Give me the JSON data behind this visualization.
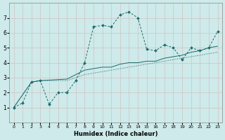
{
  "xlabel": "Humidex (Indice chaleur)",
  "bg_color": "#ceeaea",
  "grid_color": "#b8d8d8",
  "line_color": "#1a6b6b",
  "xlim": [
    -0.5,
    23.5
  ],
  "ylim": [
    0,
    8
  ],
  "xticks": [
    0,
    1,
    2,
    3,
    4,
    5,
    6,
    7,
    8,
    9,
    10,
    11,
    12,
    13,
    14,
    15,
    16,
    17,
    18,
    19,
    20,
    21,
    22,
    23
  ],
  "yticks": [
    1,
    2,
    3,
    4,
    5,
    6,
    7
  ],
  "line1_x": [
    0,
    1,
    2,
    3,
    4,
    5,
    6,
    7,
    8,
    9,
    10,
    11,
    12,
    13,
    14,
    15,
    16,
    17,
    18,
    19,
    20,
    21,
    22,
    23
  ],
  "line1_y": [
    1.0,
    1.3,
    2.7,
    2.8,
    1.2,
    2.0,
    2.0,
    2.8,
    4.0,
    6.4,
    6.5,
    6.4,
    7.2,
    7.4,
    7.0,
    4.9,
    4.8,
    5.2,
    5.0,
    4.2,
    5.0,
    4.8,
    5.0,
    6.1
  ],
  "line2_x": [
    0,
    2,
    3,
    6,
    7,
    8,
    9,
    10,
    11,
    12,
    13,
    14,
    15,
    16,
    17,
    18,
    19,
    20,
    21,
    22,
    23
  ],
  "line2_y": [
    1.0,
    2.7,
    2.8,
    2.9,
    3.2,
    3.5,
    3.6,
    3.7,
    3.7,
    3.9,
    4.0,
    4.0,
    4.1,
    4.1,
    4.3,
    4.4,
    4.5,
    4.7,
    4.8,
    5.0,
    5.1
  ],
  "line3_x": [
    0,
    2,
    3,
    6,
    7,
    8,
    9,
    10,
    11,
    12,
    13,
    14,
    15,
    16,
    17,
    18,
    19,
    20,
    21,
    22,
    23
  ],
  "line3_y": [
    1.0,
    2.7,
    2.8,
    2.8,
    3.0,
    3.2,
    3.3,
    3.4,
    3.5,
    3.6,
    3.7,
    3.8,
    3.9,
    4.0,
    4.1,
    4.2,
    4.3,
    4.4,
    4.5,
    4.6,
    4.7
  ]
}
